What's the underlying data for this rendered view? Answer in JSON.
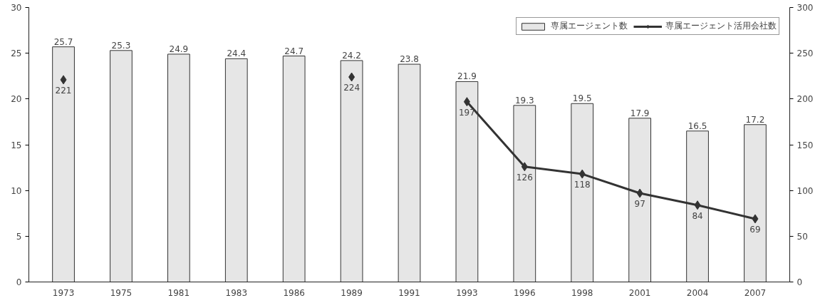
{
  "chart_data": {
    "type": "bar",
    "categories": [
      "1973",
      "1975",
      "1981",
      "1983",
      "1986",
      "1989",
      "1991",
      "1993",
      "1996",
      "1998",
      "2001",
      "2004",
      "2007"
    ],
    "series": [
      {
        "name": "専属エージェント数",
        "color": "#e6e6e6",
        "values": [
          25.7,
          25.3,
          24.9,
          24.4,
          24.7,
          24.2,
          23.8,
          21.9,
          19.3,
          19.5,
          17.9,
          16.5,
          17.2
        ]
      },
      {
        "name": "専属エージェント活用会社数",
        "type": "line",
        "axis": "y2",
        "color": "#333333",
        "values": [
          221,
          null,
          null,
          null,
          null,
          224,
          null,
          197,
          126,
          118,
          97,
          84,
          69
        ]
      }
    ],
    "ylim": [
      0,
      30
    ],
    "yticks": [
      0,
      5,
      10,
      15,
      20,
      25,
      30
    ],
    "y2lim": [
      0,
      300
    ],
    "y2ticks": [
      0,
      50,
      100,
      150,
      200,
      250,
      300
    ],
    "data_labels": true,
    "legend": "top right",
    "marker": "diamond",
    "grid": false
  }
}
